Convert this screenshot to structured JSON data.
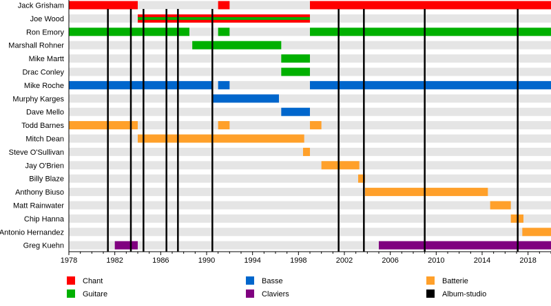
{
  "chart_data": {
    "type": "timeline",
    "xlim": [
      1978,
      2020
    ],
    "x_ticks": [
      1978,
      1982,
      1986,
      1990,
      1994,
      1998,
      2002,
      2006,
      2010,
      2014,
      2018
    ],
    "colors": {
      "Chant": "#ff0000",
      "Guitare": "#00b000",
      "Basse": "#0066cc",
      "Batterie": "#ffa02a",
      "Claviers": "#800080",
      "Album-studio": "#000000"
    },
    "legend": [
      {
        "label": "Chant",
        "color": "#ff0000"
      },
      {
        "label": "Guitare",
        "color": "#00b000"
      },
      {
        "label": "Basse",
        "color": "#0066cc"
      },
      {
        "label": "Claviers",
        "color": "#800080"
      },
      {
        "label": "Batterie",
        "color": "#ffa02a"
      },
      {
        "label": "Album-studio",
        "color": "#000000"
      }
    ],
    "albums": [
      1981.4,
      1983.4,
      1984.5,
      1986.5,
      1987.5,
      1990.5,
      2001.5,
      2003.7,
      2009.0,
      2017.1
    ],
    "members": [
      {
        "name": "Jack Grisham",
        "periods": [
          {
            "role": "Chant",
            "from": 1978,
            "to": 1984
          },
          {
            "role": "Chant",
            "from": 1991,
            "to": 1992
          },
          {
            "role": "Chant",
            "from": 1999,
            "to": 2020
          }
        ]
      },
      {
        "name": "Joe Wood",
        "periods": [
          {
            "role": "Chant",
            "second": "Guitare",
            "from": 1984,
            "to": 1999
          }
        ]
      },
      {
        "name": "Ron Emory",
        "periods": [
          {
            "role": "Guitare",
            "from": 1978,
            "to": 1988.5
          },
          {
            "role": "Guitare",
            "from": 1991,
            "to": 1992
          },
          {
            "role": "Guitare",
            "from": 1999,
            "to": 2020
          }
        ]
      },
      {
        "name": "Marshall Rohner",
        "periods": [
          {
            "role": "Guitare",
            "from": 1988.75,
            "to": 1996.5
          }
        ]
      },
      {
        "name": "Mike Martt",
        "periods": [
          {
            "role": "Guitare",
            "from": 1996.5,
            "to": 1999
          }
        ]
      },
      {
        "name": "Drac Conley",
        "periods": [
          {
            "role": "Guitare",
            "from": 1996.5,
            "to": 1999
          }
        ]
      },
      {
        "name": "Mike Roche",
        "periods": [
          {
            "role": "Basse",
            "from": 1978,
            "to": 1990.5
          },
          {
            "role": "Basse",
            "from": 1991,
            "to": 1992
          },
          {
            "role": "Basse",
            "from": 1999,
            "to": 2020
          }
        ]
      },
      {
        "name": "Murphy Karges",
        "periods": [
          {
            "role": "Basse",
            "from": 1990.5,
            "to": 1996.3
          }
        ]
      },
      {
        "name": "Dave Mello",
        "periods": [
          {
            "role": "Basse",
            "from": 1996.5,
            "to": 1999
          }
        ]
      },
      {
        "name": "Todd Barnes",
        "periods": [
          {
            "role": "Batterie",
            "from": 1978,
            "to": 1984
          },
          {
            "role": "Batterie",
            "from": 1991,
            "to": 1992
          },
          {
            "role": "Batterie",
            "from": 1999,
            "to": 2000
          }
        ]
      },
      {
        "name": "Mitch Dean",
        "periods": [
          {
            "role": "Batterie",
            "from": 1984,
            "to": 1998.5
          }
        ]
      },
      {
        "name": "Steve O'Sullivan",
        "periods": [
          {
            "role": "Batterie",
            "from": 1998.4,
            "to": 1999
          }
        ]
      },
      {
        "name": "Jay O'Brien",
        "periods": [
          {
            "role": "Batterie",
            "from": 2000,
            "to": 2003.3
          }
        ]
      },
      {
        "name": "Billy Blaze",
        "periods": [
          {
            "role": "Batterie",
            "from": 2003.2,
            "to": 2003.8
          }
        ]
      },
      {
        "name": "Anthony Biuso",
        "periods": [
          {
            "role": "Batterie",
            "from": 2003.8,
            "to": 2014.5
          }
        ]
      },
      {
        "name": "Matt Rainwater",
        "periods": [
          {
            "role": "Batterie",
            "from": 2014.7,
            "to": 2016.5
          }
        ]
      },
      {
        "name": "Chip Hanna",
        "periods": [
          {
            "role": "Batterie",
            "from": 2016.5,
            "to": 2017.6
          }
        ]
      },
      {
        "name": "Antonio Hernandez",
        "periods": [
          {
            "role": "Batterie",
            "from": 2017.5,
            "to": 2020
          }
        ]
      },
      {
        "name": "Greg Kuehn",
        "periods": [
          {
            "role": "Claviers",
            "from": 1982,
            "to": 1984
          },
          {
            "role": "Claviers",
            "from": 2005,
            "to": 2020
          }
        ]
      }
    ]
  }
}
